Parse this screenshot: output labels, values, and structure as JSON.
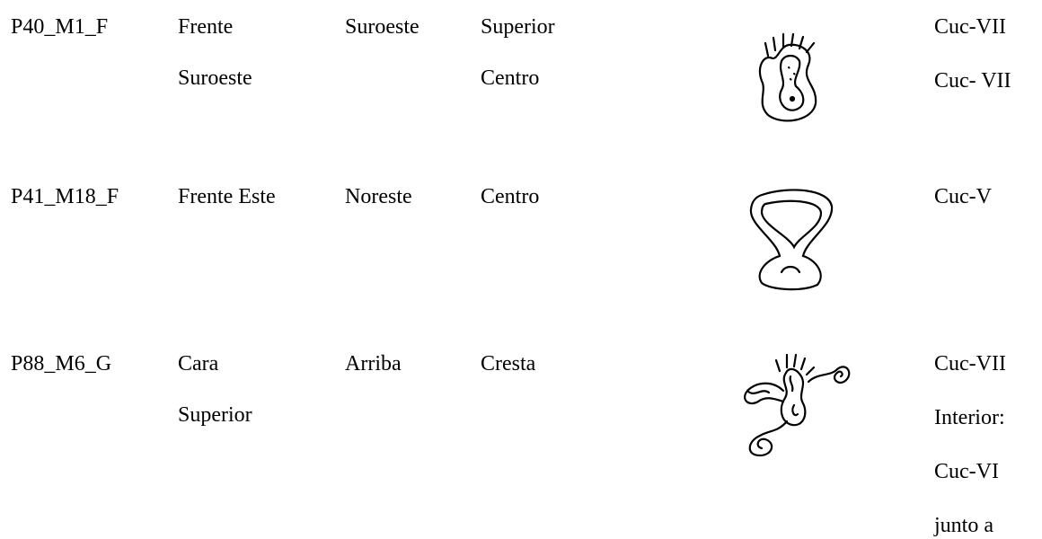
{
  "table": {
    "rows": [
      [
        [
          "P40_M1_F"
        ],
        [
          "Frente",
          "Suroeste"
        ],
        [
          "Suroeste"
        ],
        [
          "Superior",
          "Centro"
        ],
        [
          "Cuc-VII",
          "Cuc- VII"
        ]
      ],
      [
        [
          "P41_M18_F"
        ],
        [
          "Frente Este"
        ],
        [
          "Noreste"
        ],
        [
          "Centro"
        ],
        [
          "Cuc-V"
        ]
      ],
      [
        [
          "P88_M6_G"
        ],
        [
          "Cara",
          "Superior"
        ],
        [
          "Arriba"
        ],
        [
          "Cresta"
        ],
        [
          "Cuc-VII",
          "Interior:",
          "Cuc-VI",
          "junto a"
        ]
      ]
    ]
  }
}
